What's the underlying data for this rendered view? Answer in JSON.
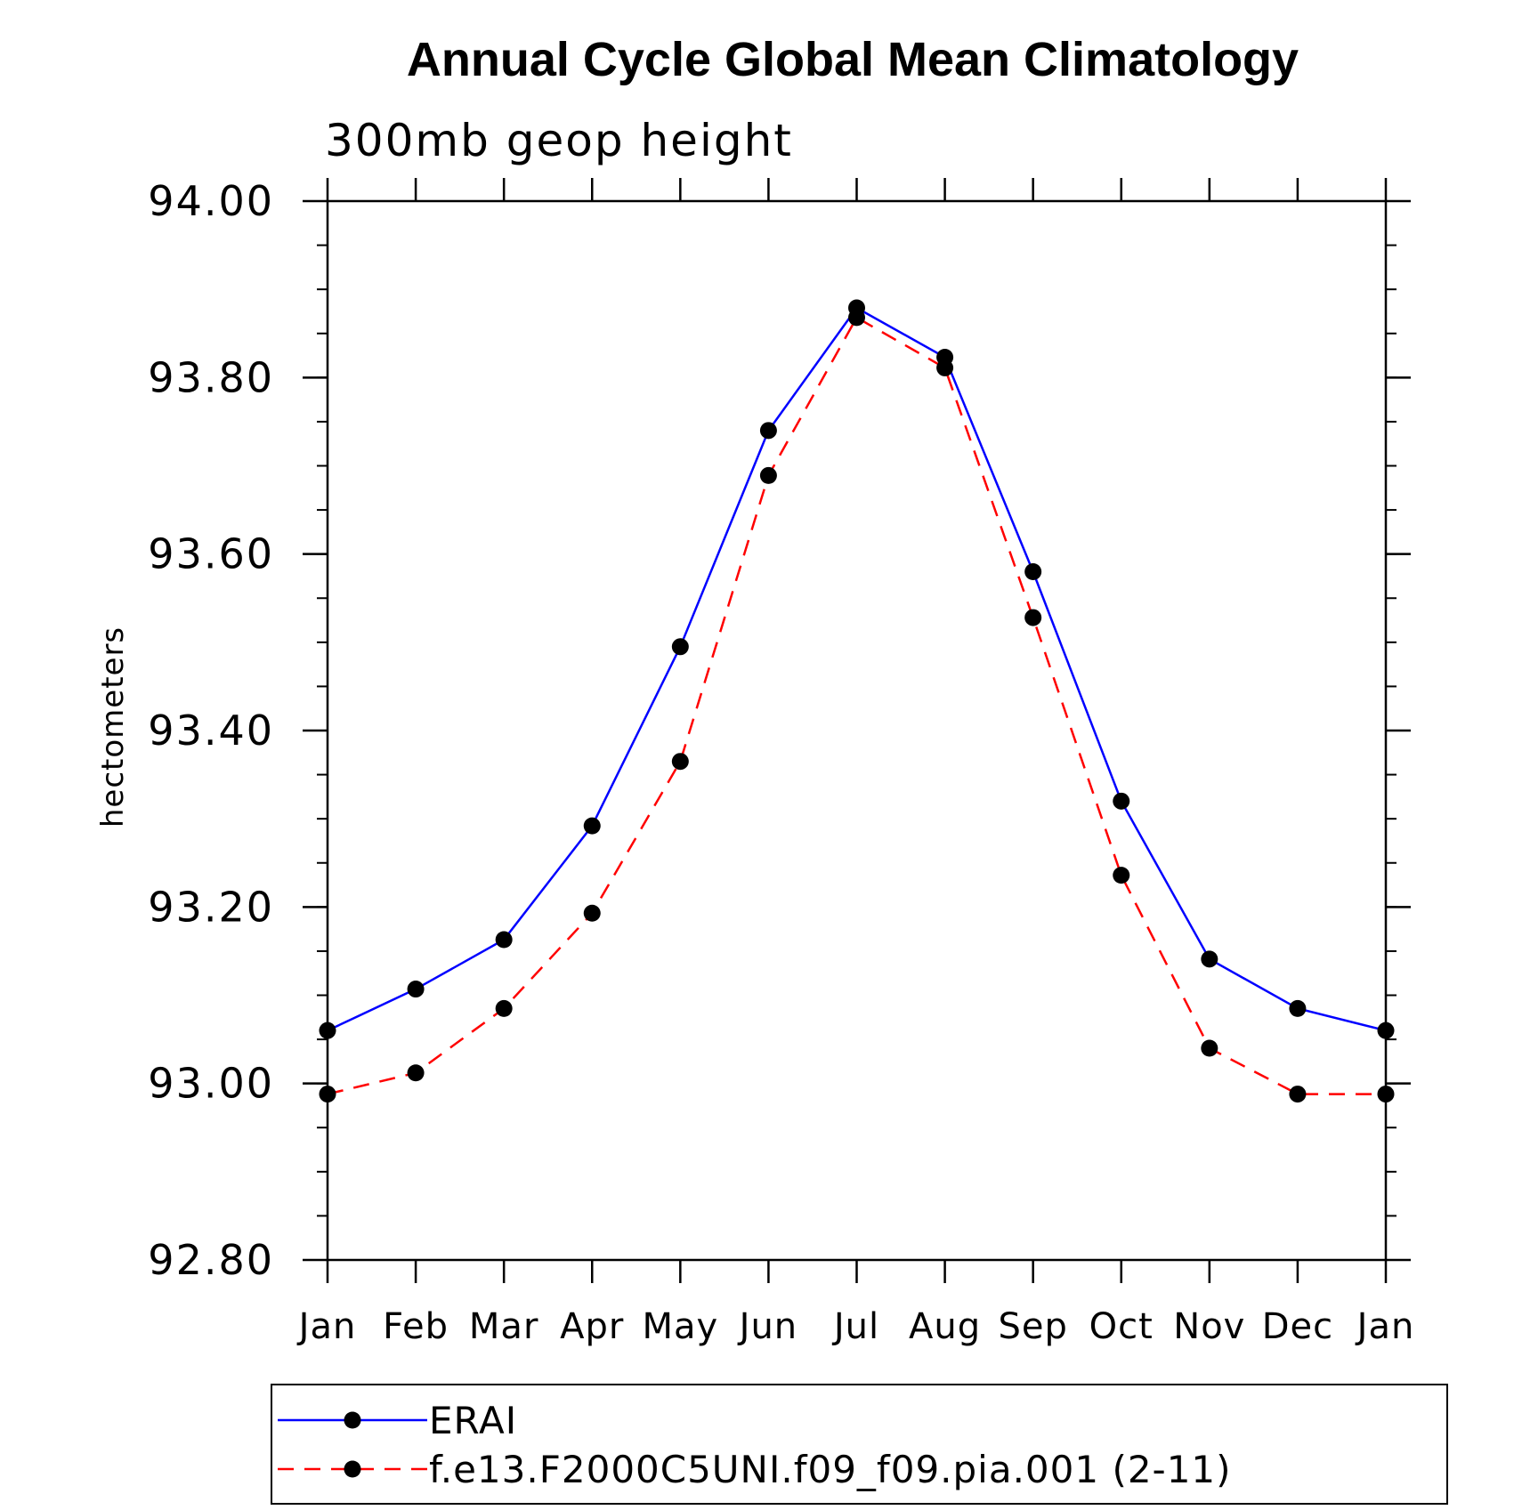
{
  "chart_data": {
    "type": "line",
    "title": "Annual Cycle Global Mean Climatology",
    "subtitle": "300mb geop height",
    "ylabel": "hectometers",
    "xlabel": "",
    "categories": [
      "Jan",
      "Feb",
      "Mar",
      "Apr",
      "May",
      "Jun",
      "Jul",
      "Aug",
      "Sep",
      "Oct",
      "Nov",
      "Dec",
      "Jan"
    ],
    "ylim": [
      92.8,
      94.0
    ],
    "y_ticks": [
      "92.80",
      "93.00",
      "93.20",
      "93.40",
      "93.60",
      "93.80",
      "94.00"
    ],
    "y_minor_step": 0.05,
    "grid": false,
    "legend_position": "bottom",
    "series": [
      {
        "name": "ERAI",
        "color": "#0000ff",
        "line_style": "solid",
        "marker": "filled-circle",
        "values": [
          93.06,
          93.107,
          93.163,
          93.292,
          93.495,
          93.74,
          93.879,
          93.823,
          93.58,
          93.32,
          93.141,
          93.085,
          93.06
        ]
      },
      {
        "name": "f.e13.F2000C5UNI.f09_f09.pia.001 (2-11)",
        "color": "#ff0000",
        "line_style": "dashed",
        "marker": "filled-circle",
        "values": [
          92.988,
          93.012,
          93.085,
          93.193,
          93.365,
          93.689,
          93.868,
          93.811,
          93.528,
          93.236,
          93.04,
          92.988,
          92.988
        ]
      }
    ],
    "marker_color": "#000000"
  }
}
